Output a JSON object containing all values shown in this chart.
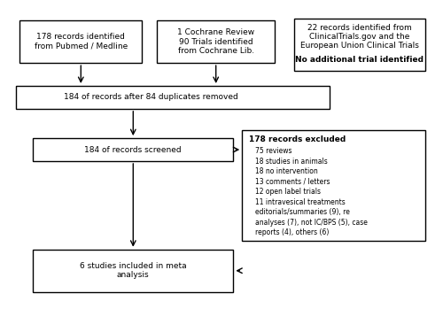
{
  "bg_color": "#ffffff",
  "box_color": "#ffffff",
  "box_edge_color": "#000000",
  "arrow_color": "#000000",
  "text_color": "#000000",
  "box1_text": "178 records identified\nfrom Pubmed / Medline",
  "box2_text": "1 Cochrane Review\n90 Trials identified\nfrom Cochrane Lib.",
  "box3_normal_text": "22 records identified from\nClinicalTrials.gov and the\nEuropean Union Clinical Trials",
  "box3_bold_text": "No additional trial identified",
  "box4_text": "184 of records after 84 duplicates removed",
  "box5_text": "184 of records screened",
  "box6_header": "178 records excluded",
  "box6_lines": [
    "75 reviews",
    "18 studies in animals",
    "18 no intervention",
    "13 comments / letters",
    "12 open label trials",
    "11 intravesical treatments",
    "editorials/summaries (9), re",
    "analyses (7), not IC/BPS (5), case",
    "reports (4), others (6)"
  ],
  "box7_text": "6 studies included in meta\nanalysis"
}
